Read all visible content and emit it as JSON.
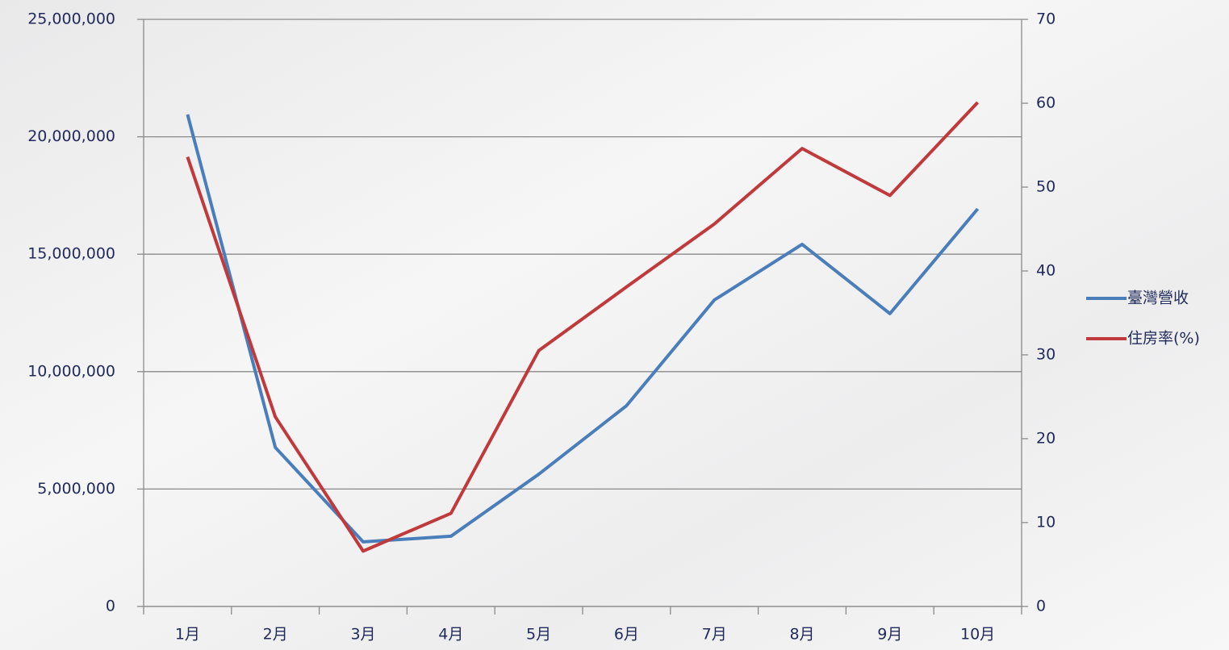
{
  "chart_data": {
    "type": "line",
    "categories": [
      "1月",
      "2月",
      "3月",
      "4月",
      "5月",
      "6月",
      "7月",
      "8月",
      "9月",
      "10月"
    ],
    "series": [
      {
        "name": "臺灣營收",
        "color": "#4a7ebb",
        "values": [
          20950000,
          6770000,
          2750000,
          2990000,
          5630000,
          8550000,
          13050000,
          15420000,
          12470000,
          16930000
        ]
      },
      {
        "name": "住房率(%)",
        "color": "#c0393b",
        "axis": "y2",
        "values": [
          53.6,
          22.6,
          6.6,
          11.1,
          30.5,
          38.1,
          45.6,
          54.6,
          49.0,
          60.1
        ]
      }
    ],
    "ylim": [
      0,
      25000000
    ],
    "yticks": [
      0,
      {
        "value": 5000000,
        "label": "5,000,000"
      },
      {
        "value": 10000000,
        "label": "10,000,000"
      },
      {
        "value": 15000000,
        "label": "15,000,000"
      },
      {
        "value": 20000000,
        "label": "20,000,000"
      },
      {
        "value": 25000000,
        "label": "25,000,000"
      }
    ],
    "y2lim": [
      0,
      70
    ],
    "y2ticks": [
      0,
      10,
      20,
      30,
      40,
      50,
      60,
      70
    ],
    "grid": true,
    "legend": "right"
  }
}
